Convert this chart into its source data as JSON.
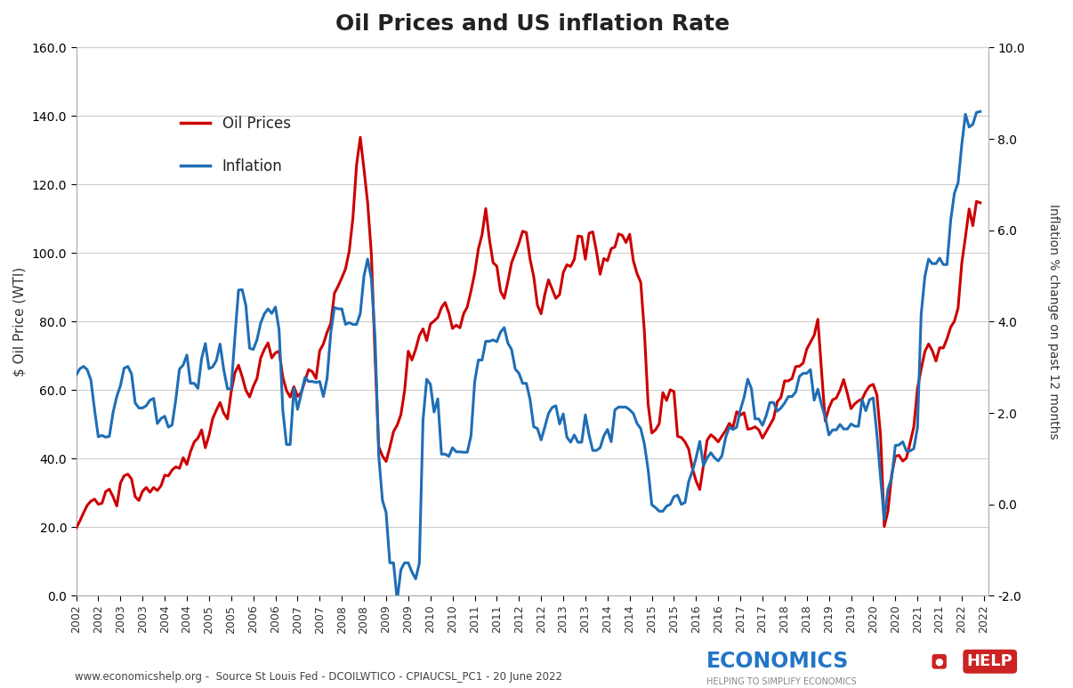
{
  "title": "Oil Prices and US inflation Rate",
  "ylabel_left": "$ Oil Price (WTI)",
  "ylabel_right": "Inflation % change on past 12 months",
  "source_text": "www.economicshelp.org -  Source St Louis Fed - DCOILWTICO - CPIAUCSL_PC1 - 20 June 2022",
  "background_color": "#ffffff",
  "oil_color": "#cc0000",
  "inflation_color": "#1f6eb5",
  "ylim_left": [
    0.0,
    160.0
  ],
  "ylim_right": [
    -2.0,
    10.0
  ],
  "left_yticks": [
    0.0,
    20.0,
    40.0,
    60.0,
    80.0,
    100.0,
    120.0,
    140.0,
    160.0
  ],
  "right_yticks": [
    -2.0,
    0.0,
    2.0,
    4.0,
    6.0,
    8.0,
    10.0
  ],
  "oil_x": [
    2002.0,
    2002.083,
    2002.167,
    2002.25,
    2002.333,
    2002.417,
    2002.5,
    2002.583,
    2002.667,
    2002.75,
    2002.833,
    2002.917,
    2003.0,
    2003.083,
    2003.167,
    2003.25,
    2003.333,
    2003.417,
    2003.5,
    2003.583,
    2003.667,
    2003.75,
    2003.833,
    2003.917,
    2004.0,
    2004.083,
    2004.167,
    2004.25,
    2004.333,
    2004.417,
    2004.5,
    2004.583,
    2004.667,
    2004.75,
    2004.833,
    2004.917,
    2005.0,
    2005.083,
    2005.167,
    2005.25,
    2005.333,
    2005.417,
    2005.5,
    2005.583,
    2005.667,
    2005.75,
    2005.833,
    2005.917,
    2006.0,
    2006.083,
    2006.167,
    2006.25,
    2006.333,
    2006.417,
    2006.5,
    2006.583,
    2006.667,
    2006.75,
    2006.833,
    2006.917,
    2007.0,
    2007.083,
    2007.167,
    2007.25,
    2007.333,
    2007.417,
    2007.5,
    2007.583,
    2007.667,
    2007.75,
    2007.833,
    2007.917,
    2008.0,
    2008.083,
    2008.167,
    2008.25,
    2008.333,
    2008.417,
    2008.5,
    2008.583,
    2008.667,
    2008.75,
    2008.833,
    2008.917,
    2009.0,
    2009.083,
    2009.167,
    2009.25,
    2009.333,
    2009.417,
    2009.5,
    2009.583,
    2009.667,
    2009.75,
    2009.833,
    2009.917,
    2010.0,
    2010.083,
    2010.167,
    2010.25,
    2010.333,
    2010.417,
    2010.5,
    2010.583,
    2010.667,
    2010.75,
    2010.833,
    2010.917,
    2011.0,
    2011.083,
    2011.167,
    2011.25,
    2011.333,
    2011.417,
    2011.5,
    2011.583,
    2011.667,
    2011.75,
    2011.833,
    2011.917,
    2012.0,
    2012.083,
    2012.167,
    2012.25,
    2012.333,
    2012.417,
    2012.5,
    2012.583,
    2012.667,
    2012.75,
    2012.833,
    2012.917,
    2013.0,
    2013.083,
    2013.167,
    2013.25,
    2013.333,
    2013.417,
    2013.5,
    2013.583,
    2013.667,
    2013.75,
    2013.833,
    2013.917,
    2014.0,
    2014.083,
    2014.167,
    2014.25,
    2014.333,
    2014.417,
    2014.5,
    2014.583,
    2014.667,
    2014.75,
    2014.833,
    2014.917,
    2015.0,
    2015.083,
    2015.167,
    2015.25,
    2015.333,
    2015.417,
    2015.5,
    2015.583,
    2015.667,
    2015.75,
    2015.833,
    2015.917,
    2016.0,
    2016.083,
    2016.167,
    2016.25,
    2016.333,
    2016.417,
    2016.5,
    2016.583,
    2016.667,
    2016.75,
    2016.833,
    2016.917,
    2017.0,
    2017.083,
    2017.167,
    2017.25,
    2017.333,
    2017.417,
    2017.5,
    2017.583,
    2017.667,
    2017.75,
    2017.833,
    2017.917,
    2018.0,
    2018.083,
    2018.167,
    2018.25,
    2018.333,
    2018.417,
    2018.5,
    2018.583,
    2018.667,
    2018.75,
    2018.833,
    2018.917,
    2019.0,
    2019.083,
    2019.167,
    2019.25,
    2019.333,
    2019.417,
    2019.5,
    2019.583,
    2019.667,
    2019.75,
    2019.833,
    2019.917,
    2020.0,
    2020.083,
    2020.167,
    2020.25,
    2020.333,
    2020.417,
    2020.5,
    2020.583,
    2020.667,
    2020.75,
    2020.833,
    2020.917,
    2021.0,
    2021.083,
    2021.167,
    2021.25,
    2021.333,
    2021.417,
    2021.5,
    2021.583,
    2021.667,
    2021.75,
    2021.833,
    2021.917,
    2022.0,
    2022.083,
    2022.167,
    2022.25,
    2022.333,
    2022.417
  ],
  "oil_y": [
    19.7,
    21.8,
    24.2,
    26.4,
    27.6,
    28.2,
    26.7,
    27.0,
    30.4,
    31.1,
    28.9,
    26.2,
    32.9,
    35.0,
    35.5,
    34.1,
    28.9,
    27.8,
    30.5,
    31.6,
    30.2,
    31.6,
    30.7,
    32.1,
    35.2,
    35.0,
    36.7,
    37.6,
    37.2,
    40.3,
    38.3,
    42.1,
    44.9,
    46.0,
    48.4,
    43.2,
    46.8,
    51.7,
    54.2,
    56.4,
    53.3,
    51.6,
    59.4,
    65.0,
    67.3,
    63.9,
    60.0,
    58.0,
    61.1,
    63.4,
    69.4,
    71.9,
    73.8,
    69.4,
    70.9,
    71.4,
    63.8,
    59.9,
    58.0,
    61.0,
    58.2,
    59.3,
    62.8,
    66.0,
    65.4,
    63.4,
    71.5,
    73.5,
    76.9,
    79.5,
    88.3,
    90.4,
    92.8,
    95.4,
    100.6,
    110.2,
    125.8,
    133.8,
    124.5,
    114.7,
    99.7,
    70.0,
    43.5,
    40.8,
    39.2,
    43.3,
    47.9,
    49.8,
    52.8,
    59.8,
    71.4,
    68.8,
    71.9,
    75.9,
    77.9,
    74.5,
    79.3,
    80.2,
    81.2,
    84.1,
    85.6,
    82.5,
    78.0,
    79.0,
    78.2,
    82.3,
    84.3,
    89.0,
    94.1,
    101.2,
    105.4,
    113.0,
    104.0,
    97.2,
    96.2,
    88.9,
    86.8,
    91.7,
    97.2,
    100.0,
    102.9,
    106.4,
    106.0,
    98.3,
    93.2,
    84.8,
    82.3,
    87.9,
    92.2,
    89.5,
    86.8,
    87.9,
    94.3,
    96.6,
    96.1,
    98.2,
    105.0,
    104.8,
    98.2,
    105.8,
    106.2,
    100.5,
    93.8,
    98.4,
    97.8,
    101.3,
    101.8,
    105.6,
    105.2,
    103.1,
    105.5,
    97.8,
    94.0,
    91.5,
    77.0,
    55.9,
    47.5,
    48.4,
    50.2,
    59.3,
    57.0,
    60.1,
    59.6,
    46.5,
    46.2,
    44.9,
    42.8,
    37.2,
    33.5,
    31.0,
    38.1,
    45.4,
    47.0,
    46.1,
    44.9,
    46.6,
    48.2,
    50.3,
    49.1,
    53.7,
    52.7,
    53.4,
    48.6,
    48.8,
    49.3,
    48.4,
    46.0,
    47.9,
    49.8,
    51.7,
    56.6,
    57.9,
    62.7,
    62.7,
    63.4,
    66.9,
    67.0,
    67.9,
    72.0,
    74.0,
    76.0,
    80.7,
    65.7,
    51.0,
    54.8,
    57.2,
    57.7,
    60.0,
    63.1,
    59.0,
    54.6,
    56.0,
    56.9,
    57.4,
    59.6,
    61.2,
    61.7,
    58.7,
    46.6,
    20.2,
    24.7,
    35.3,
    40.7,
    41.0,
    39.3,
    40.2,
    44.6,
    49.3,
    60.5,
    66.1,
    71.3,
    73.5,
    71.6,
    68.5,
    72.4,
    72.3,
    75.0,
    78.4,
    80.1,
    84.0,
    97.0,
    104.7,
    112.9,
    108.0,
    115.1,
    114.7
  ],
  "inf_x": [
    2002.0,
    2002.083,
    2002.167,
    2002.25,
    2002.333,
    2002.417,
    2002.5,
    2002.583,
    2002.667,
    2002.75,
    2002.833,
    2002.917,
    2003.0,
    2003.083,
    2003.167,
    2003.25,
    2003.333,
    2003.417,
    2003.5,
    2003.583,
    2003.667,
    2003.75,
    2003.833,
    2003.917,
    2004.0,
    2004.083,
    2004.167,
    2004.25,
    2004.333,
    2004.417,
    2004.5,
    2004.583,
    2004.667,
    2004.75,
    2004.833,
    2004.917,
    2005.0,
    2005.083,
    2005.167,
    2005.25,
    2005.333,
    2005.417,
    2005.5,
    2005.583,
    2005.667,
    2005.75,
    2005.833,
    2005.917,
    2006.0,
    2006.083,
    2006.167,
    2006.25,
    2006.333,
    2006.417,
    2006.5,
    2006.583,
    2006.667,
    2006.75,
    2006.833,
    2006.917,
    2007.0,
    2007.083,
    2007.167,
    2007.25,
    2007.333,
    2007.417,
    2007.5,
    2007.583,
    2007.667,
    2007.75,
    2007.833,
    2007.917,
    2008.0,
    2008.083,
    2008.167,
    2008.25,
    2008.333,
    2008.417,
    2008.5,
    2008.583,
    2008.667,
    2008.75,
    2008.833,
    2008.917,
    2009.0,
    2009.083,
    2009.167,
    2009.25,
    2009.333,
    2009.417,
    2009.5,
    2009.583,
    2009.667,
    2009.75,
    2009.833,
    2009.917,
    2010.0,
    2010.083,
    2010.167,
    2010.25,
    2010.333,
    2010.417,
    2010.5,
    2010.583,
    2010.667,
    2010.75,
    2010.833,
    2010.917,
    2011.0,
    2011.083,
    2011.167,
    2011.25,
    2011.333,
    2011.417,
    2011.5,
    2011.583,
    2011.667,
    2011.75,
    2011.833,
    2011.917,
    2012.0,
    2012.083,
    2012.167,
    2012.25,
    2012.333,
    2012.417,
    2012.5,
    2012.583,
    2012.667,
    2012.75,
    2012.833,
    2012.917,
    2013.0,
    2013.083,
    2013.167,
    2013.25,
    2013.333,
    2013.417,
    2013.5,
    2013.583,
    2013.667,
    2013.75,
    2013.833,
    2013.917,
    2014.0,
    2014.083,
    2014.167,
    2014.25,
    2014.333,
    2014.417,
    2014.5,
    2014.583,
    2014.667,
    2014.75,
    2014.833,
    2014.917,
    2015.0,
    2015.083,
    2015.167,
    2015.25,
    2015.333,
    2015.417,
    2015.5,
    2015.583,
    2015.667,
    2015.75,
    2015.833,
    2015.917,
    2016.0,
    2016.083,
    2016.167,
    2016.25,
    2016.333,
    2016.417,
    2016.5,
    2016.583,
    2016.667,
    2016.75,
    2016.833,
    2016.917,
    2017.0,
    2017.083,
    2017.167,
    2017.25,
    2017.333,
    2017.417,
    2017.5,
    2017.583,
    2017.667,
    2017.75,
    2017.833,
    2017.917,
    2018.0,
    2018.083,
    2018.167,
    2018.25,
    2018.333,
    2018.417,
    2018.5,
    2018.583,
    2018.667,
    2018.75,
    2018.833,
    2018.917,
    2019.0,
    2019.083,
    2019.167,
    2019.25,
    2019.333,
    2019.417,
    2019.5,
    2019.583,
    2019.667,
    2019.75,
    2019.833,
    2019.917,
    2020.0,
    2020.083,
    2020.167,
    2020.25,
    2020.333,
    2020.417,
    2020.5,
    2020.583,
    2020.667,
    2020.75,
    2020.833,
    2020.917,
    2021.0,
    2021.083,
    2021.167,
    2021.25,
    2021.333,
    2021.417,
    2021.5,
    2021.583,
    2021.667,
    2021.75,
    2021.833,
    2021.917,
    2022.0,
    2022.083,
    2022.167,
    2022.25,
    2022.333,
    2022.417
  ],
  "inf_y": [
    2.83,
    2.97,
    3.02,
    2.95,
    2.72,
    2.06,
    1.48,
    1.51,
    1.47,
    1.49,
    2.01,
    2.36,
    2.6,
    2.98,
    3.02,
    2.86,
    2.22,
    2.11,
    2.11,
    2.16,
    2.28,
    2.32,
    1.77,
    1.88,
    1.93,
    1.69,
    1.74,
    2.29,
    2.96,
    3.05,
    3.27,
    2.65,
    2.65,
    2.54,
    3.19,
    3.52,
    2.97,
    3.01,
    3.15,
    3.51,
    2.95,
    2.53,
    2.53,
    3.64,
    4.69,
    4.7,
    4.35,
    3.42,
    3.39,
    3.6,
    3.97,
    4.17,
    4.28,
    4.18,
    4.32,
    3.82,
    2.06,
    1.31,
    1.31,
    2.54,
    2.08,
    2.42,
    2.78,
    2.69,
    2.69,
    2.67,
    2.69,
    2.36,
    2.76,
    3.76,
    4.31,
    4.28,
    4.28,
    3.94,
    3.98,
    3.94,
    3.94,
    4.18,
    5.0,
    5.37,
    4.94,
    3.66,
    1.07,
    0.09,
    -0.18,
    -1.28,
    -1.28,
    -2.1,
    -1.43,
    -1.28,
    -1.28,
    -1.48,
    -1.63,
    -1.29,
    1.84,
    2.74,
    2.63,
    2.02,
    2.31,
    1.1,
    1.1,
    1.05,
    1.24,
    1.15,
    1.15,
    1.14,
    1.14,
    1.5,
    2.68,
    3.16,
    3.16,
    3.57,
    3.57,
    3.6,
    3.56,
    3.77,
    3.87,
    3.53,
    3.39,
    2.96,
    2.87,
    2.65,
    2.65,
    2.3,
    1.7,
    1.66,
    1.41,
    1.69,
    1.99,
    2.12,
    2.16,
    1.76,
    1.98,
    1.47,
    1.36,
    1.52,
    1.36,
    1.36,
    1.96,
    1.52,
    1.18,
    1.18,
    1.24,
    1.5,
    1.64,
    1.37,
    2.07,
    2.13,
    2.13,
    2.13,
    2.07,
    1.99,
    1.77,
    1.66,
    1.32,
    0.76,
    -0.01,
    -0.07,
    -0.15,
    -0.15,
    -0.04,
    0.0,
    0.17,
    0.2,
    0.0,
    0.04,
    0.5,
    0.73,
    1.02,
    1.38,
    0.85,
    1.02,
    1.13,
    1.02,
    0.95,
    1.06,
    1.46,
    1.69,
    1.64,
    1.69,
    2.07,
    2.34,
    2.74,
    2.53,
    1.87,
    1.87,
    1.73,
    1.94,
    2.23,
    2.23,
    2.04,
    2.11,
    2.22,
    2.36,
    2.36,
    2.46,
    2.8,
    2.87,
    2.87,
    2.95,
    2.28,
    2.52,
    2.18,
    1.91,
    1.52,
    1.63,
    1.63,
    1.75,
    1.65,
    1.65,
    1.76,
    1.71,
    1.71,
    2.29,
    2.05,
    2.29,
    2.33,
    1.54,
    0.58,
    -0.33,
    0.33,
    0.58,
    1.29,
    1.3,
    1.37,
    1.17,
    1.17,
    1.22,
    1.68,
    4.16,
    4.99,
    5.37,
    5.27,
    5.27,
    5.39,
    5.25,
    5.25,
    6.22,
    6.81,
    7.04,
    7.87,
    8.54,
    8.26,
    8.32,
    8.58,
    8.6
  ],
  "xlim": [
    2002.0,
    2022.6
  ],
  "xtick_positions": [
    2002.0,
    2002.5,
    2003.0,
    2003.5,
    2004.0,
    2004.5,
    2005.0,
    2005.5,
    2006.0,
    2006.5,
    2007.0,
    2007.5,
    2008.0,
    2008.5,
    2009.0,
    2009.5,
    2010.0,
    2010.5,
    2011.0,
    2011.5,
    2012.0,
    2012.5,
    2013.0,
    2013.5,
    2014.0,
    2014.5,
    2015.0,
    2015.5,
    2016.0,
    2016.5,
    2017.0,
    2017.5,
    2018.0,
    2018.5,
    2019.0,
    2019.5,
    2020.0,
    2020.5,
    2021.0,
    2021.5,
    2022.0,
    2022.5
  ],
  "xtick_labels": [
    "2002",
    "2002",
    "2003",
    "2003",
    "2004",
    "2004",
    "2005",
    "2005",
    "2006",
    "2006",
    "2007",
    "2007",
    "2008",
    "2008",
    "2009",
    "2009",
    "2010",
    "2010",
    "2011",
    "2011",
    "2012",
    "2012",
    "2013",
    "2013",
    "2014",
    "2014",
    "2015",
    "2015",
    "2016",
    "2016",
    "2017",
    "2017",
    "2018",
    "2018",
    "2019",
    "2019",
    "2020",
    "2020",
    "2021",
    "2021",
    "2022",
    "2022"
  ]
}
